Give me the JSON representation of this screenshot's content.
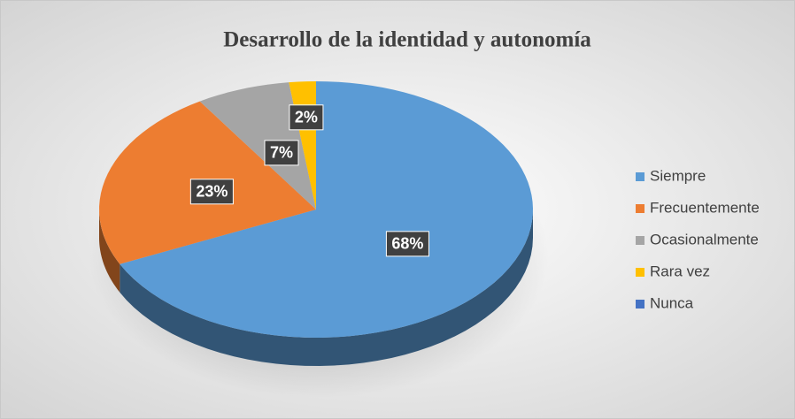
{
  "chart_data": {
    "type": "pie",
    "title": "Desarrollo de la identidad y autonomía",
    "categories": [
      "Siempre",
      "Frecuentemente",
      "Ocasionalmente",
      "Rara vez",
      "Nunca"
    ],
    "values": [
      68,
      23,
      7,
      2,
      0
    ],
    "value_labels": [
      "68%",
      "23%",
      "7%",
      "2%",
      null
    ],
    "colors": [
      "#5b9bd5",
      "#ed7d31",
      "#a5a5a5",
      "#ffc000",
      "#4472c4"
    ],
    "legend": "right"
  }
}
